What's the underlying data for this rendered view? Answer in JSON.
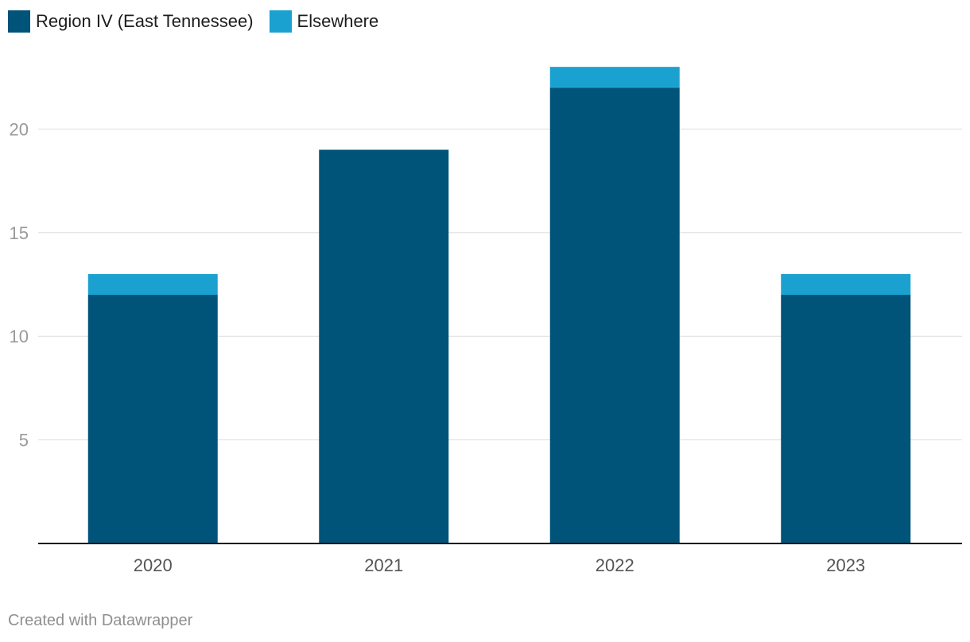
{
  "chart_data": {
    "type": "bar",
    "stacked": true,
    "title": "",
    "xlabel": "",
    "ylabel": "",
    "categories": [
      "2020",
      "2021",
      "2022",
      "2023"
    ],
    "series": [
      {
        "name": "Region IV (East Tennessee)",
        "color": "#005379",
        "values": [
          12,
          19,
          22,
          12
        ]
      },
      {
        "name": "Elsewhere",
        "color": "#1ba1cf",
        "values": [
          1,
          0,
          1,
          1
        ]
      }
    ],
    "ylim": [
      0,
      24.5
    ],
    "yticks": [
      5,
      10,
      15,
      20
    ],
    "grid": true,
    "legend": "top-left"
  },
  "footer": {
    "credit": "Created with Datawrapper"
  }
}
